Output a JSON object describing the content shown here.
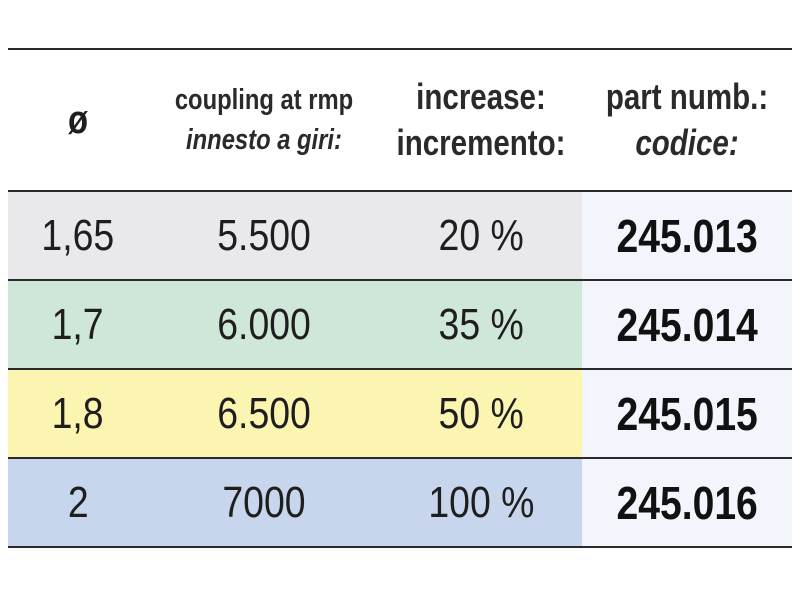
{
  "header": {
    "diameter_symbol": "ø",
    "coupling_en": "coupling at rmp",
    "coupling_it": "innesto a giri:",
    "increase_en": "increase:",
    "increase_it": "incremento:",
    "part_en": "part numb.:",
    "part_it": "codice:"
  },
  "colors": {
    "row1": "#e9e9ec",
    "row2": "#cfe7d8",
    "row3": "#fcf4b1",
    "row4": "#c7d6ec",
    "code_bg": "#f2f5fb"
  },
  "rows": [
    {
      "diameter": "1,65",
      "rpm": "5.500",
      "increase": "20 %",
      "code": "245.013"
    },
    {
      "diameter": "1,7",
      "rpm": "6.000",
      "increase": "35 %",
      "code": "245.014"
    },
    {
      "diameter": "1,8",
      "rpm": "6.500",
      "increase": "50 %",
      "code": "245.015"
    },
    {
      "diameter": "2",
      "rpm": "7000",
      "increase": "100 %",
      "code": "245.016"
    }
  ]
}
